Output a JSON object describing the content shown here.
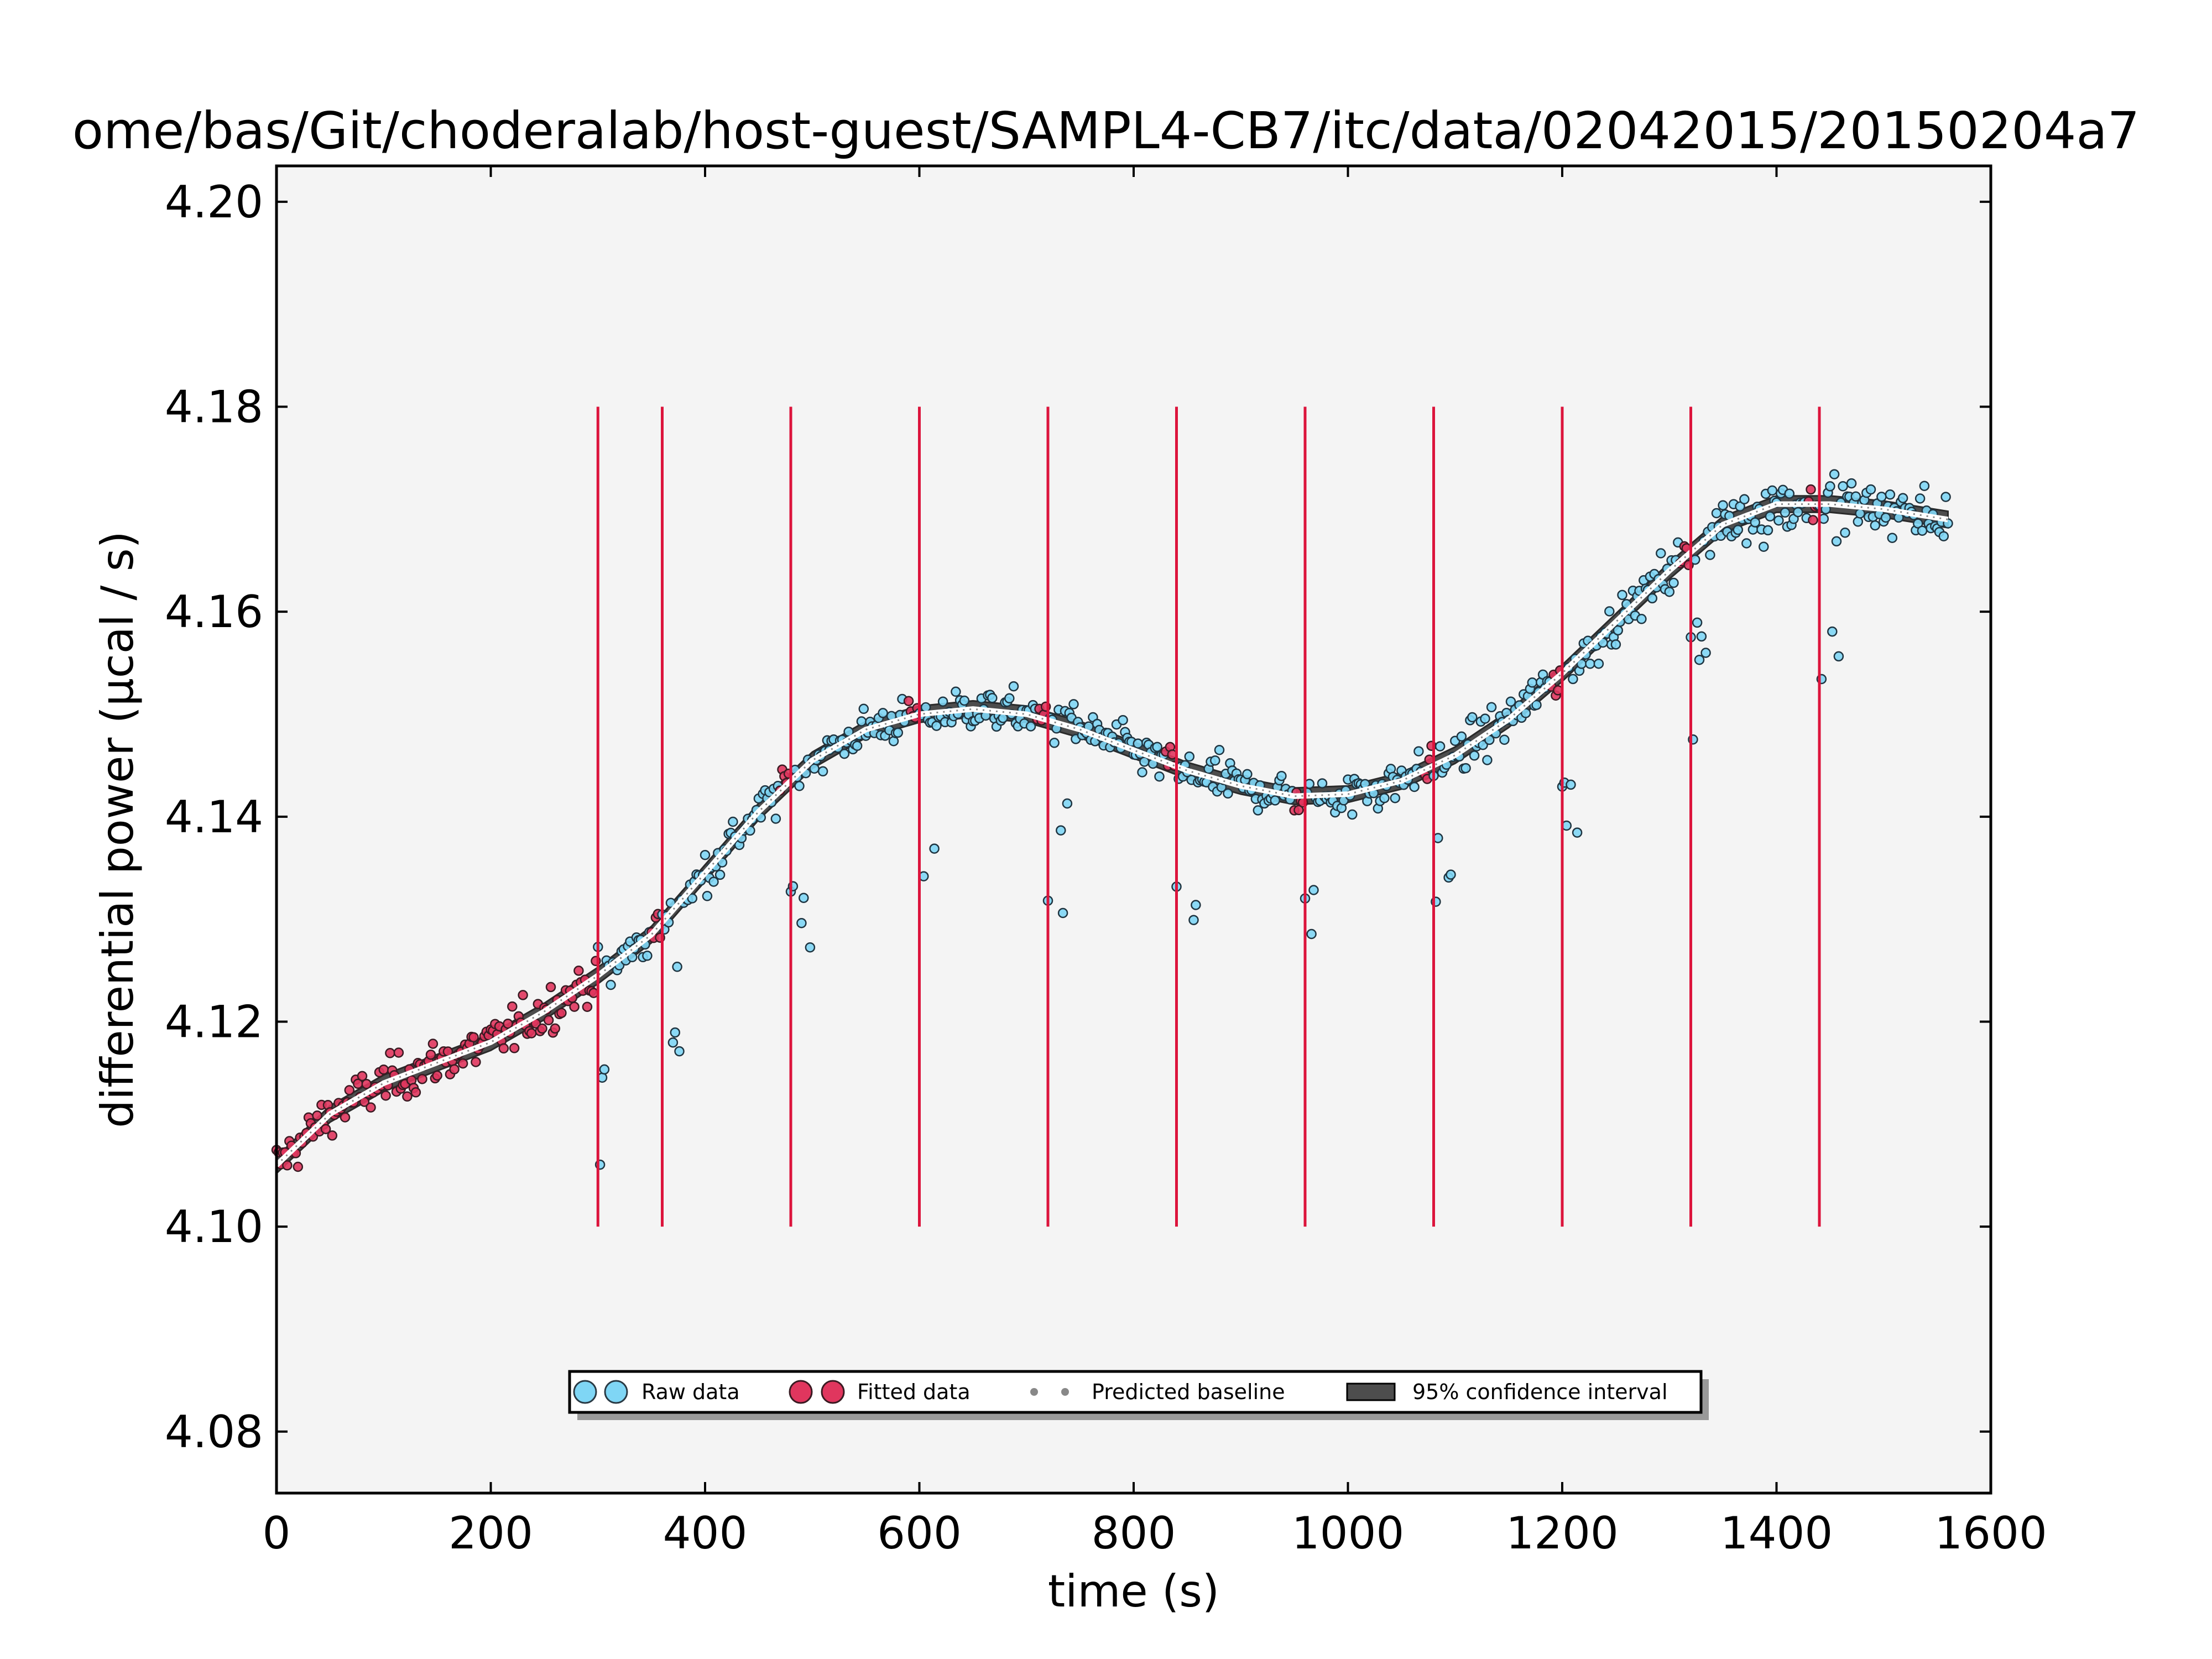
{
  "chart_data": {
    "type": "scatter",
    "title": "ome/bas/Git/choderalab/host-guest/SAMPL4-CB7/itc/data/02042015/20150204a7",
    "xlabel": "time (s)",
    "ylabel": "differential power (μcal / s)",
    "xlim": [
      0,
      1600
    ],
    "ylim": [
      4.074,
      4.2035
    ],
    "xticks": [
      "0",
      "200",
      "400",
      "600",
      "800",
      "1000",
      "1200",
      "1400",
      "1600"
    ],
    "xtick_values": [
      0,
      200,
      400,
      600,
      800,
      1000,
      1200,
      1400,
      1600
    ],
    "yticks": [
      "4.08",
      "4.10",
      "4.12",
      "4.14",
      "4.16",
      "4.18",
      "4.20"
    ],
    "ytick_values": [
      4.08,
      4.1,
      4.12,
      4.14,
      4.16,
      4.18,
      4.2
    ],
    "legend_position": "lower-center",
    "grid": false,
    "colors": {
      "raw": "#7fd6f5",
      "fitted": "#e0365e",
      "injection": "#dc143c",
      "baseline": "#888888",
      "confidence": "#4d4d4d",
      "background": "#f4f4f4"
    },
    "injection_times": [
      300,
      360,
      480,
      600,
      720,
      840,
      960,
      1080,
      1200,
      1320,
      1440
    ],
    "injection_ylim": [
      4.1,
      4.18
    ],
    "baseline_curve": {
      "x": [
        0,
        50,
        100,
        150,
        200,
        250,
        300,
        350,
        400,
        450,
        500,
        550,
        600,
        650,
        700,
        750,
        800,
        850,
        900,
        950,
        1000,
        1050,
        1100,
        1150,
        1200,
        1250,
        1300,
        1350,
        1400,
        1450,
        1500,
        1560
      ],
      "y": [
        4.106,
        4.111,
        4.114,
        4.116,
        4.118,
        4.121,
        4.1245,
        4.1285,
        4.1345,
        4.1405,
        4.1455,
        4.1485,
        4.15,
        4.1505,
        4.15,
        4.1485,
        4.1465,
        4.1445,
        4.143,
        4.142,
        4.1422,
        4.1435,
        4.146,
        4.1495,
        4.154,
        4.159,
        4.164,
        4.1685,
        4.1705,
        4.1705,
        4.17,
        4.169
      ],
      "ci_halfwidth": 0.0008
    },
    "series": [
      {
        "name": "Raw data",
        "marker": "circle",
        "color": "#7fd6f5"
      },
      {
        "name": "Fitted data",
        "marker": "circle",
        "color": "#e0365e"
      },
      {
        "name": "Predicted baseline",
        "marker": "dot",
        "color": "#888888"
      },
      {
        "name": "95% confidence interval",
        "marker": "box",
        "color": "#4d4d4d"
      }
    ]
  }
}
